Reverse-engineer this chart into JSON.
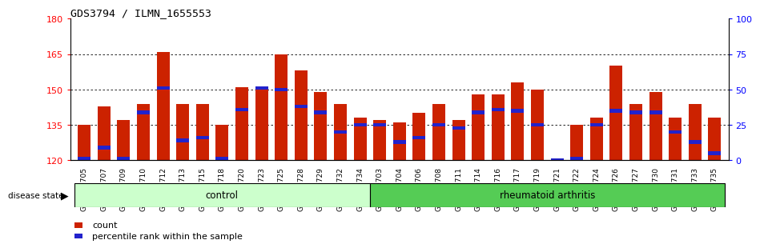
{
  "title": "GDS3794 / ILMN_1655553",
  "samples": [
    "GSM389705",
    "GSM389707",
    "GSM389709",
    "GSM389710",
    "GSM389712",
    "GSM389713",
    "GSM389715",
    "GSM389718",
    "GSM389720",
    "GSM389723",
    "GSM389725",
    "GSM389728",
    "GSM389729",
    "GSM389732",
    "GSM389734",
    "GSM389703",
    "GSM389704",
    "GSM389706",
    "GSM389708",
    "GSM389711",
    "GSM389714",
    "GSM389716",
    "GSM389717",
    "GSM389719",
    "GSM389721",
    "GSM389722",
    "GSM389724",
    "GSM389726",
    "GSM389727",
    "GSM389730",
    "GSM389731",
    "GSM389733",
    "GSM389735"
  ],
  "counts": [
    135,
    143,
    137,
    144,
    166,
    144,
    144,
    135,
    151,
    150,
    165,
    158,
    149,
    144,
    138,
    137,
    136,
    140,
    144,
    137,
    148,
    148,
    153,
    150,
    121,
    135,
    138,
    160,
    144,
    149,
    138,
    144,
    138
  ],
  "percentile_ranks": [
    1,
    9,
    1,
    34,
    51,
    14,
    16,
    1,
    36,
    51,
    50,
    38,
    34,
    20,
    25,
    25,
    13,
    16,
    25,
    23,
    34,
    36,
    35,
    25,
    0,
    1,
    25,
    35,
    34,
    34,
    20,
    13,
    5
  ],
  "control_count": 15,
  "rheumatoid_count": 18,
  "ymin": 120,
  "ymax": 180,
  "yticks": [
    120,
    135,
    150,
    165,
    180
  ],
  "right_yticks": [
    0,
    25,
    50,
    75,
    100
  ],
  "bar_color": "#cc2200",
  "blue_color": "#2222cc",
  "control_color": "#ccffcc",
  "rheumatoid_color": "#55cc55",
  "bar_width": 0.65,
  "legend_count_color": "#cc2200",
  "legend_pct_color": "#2222cc"
}
